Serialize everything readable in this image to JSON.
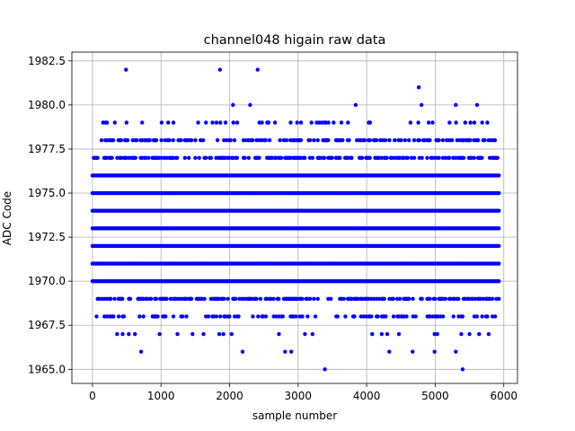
{
  "chart_data": {
    "type": "scatter",
    "title": "channel048 higain raw data",
    "xlabel": "sample number",
    "ylabel": "ADC Code",
    "xlim": [
      -300,
      6200
    ],
    "ylim": [
      1964.2,
      1983.0
    ],
    "xticks": [
      0,
      1000,
      2000,
      3000,
      4000,
      5000,
      6000
    ],
    "yticks": [
      1965.0,
      1967.5,
      1970.0,
      1972.5,
      1975.0,
      1977.5,
      1980.0,
      1982.5
    ],
    "xtick_labels": [
      "0",
      "1000",
      "2000",
      "3000",
      "4000",
      "5000",
      "6000"
    ],
    "ytick_labels": [
      "1965.0",
      "1967.5",
      "1970.0",
      "1972.5",
      "1975.0",
      "1977.5",
      "1980.0",
      "1982.5"
    ],
    "grid": true,
    "color": "#0000ff",
    "x_range": [
      0,
      5940
    ],
    "dense_bands": [
      1970,
      1971,
      1972,
      1973,
      1974,
      1975,
      1976
    ],
    "medium_bands": [
      1969,
      1977,
      1978
    ],
    "sparse_bands": [
      1968,
      1979
    ],
    "points": [
      {
        "x": 490,
        "y": 1982
      },
      {
        "x": 1860,
        "y": 1982
      },
      {
        "x": 2410,
        "y": 1982
      },
      {
        "x": 4760,
        "y": 1981
      },
      {
        "x": 2050,
        "y": 1980
      },
      {
        "x": 2300,
        "y": 1980
      },
      {
        "x": 3840,
        "y": 1980
      },
      {
        "x": 4800,
        "y": 1980
      },
      {
        "x": 5300,
        "y": 1980
      },
      {
        "x": 5610,
        "y": 1980
      },
      {
        "x": 360,
        "y": 1967
      },
      {
        "x": 440,
        "y": 1967
      },
      {
        "x": 530,
        "y": 1967
      },
      {
        "x": 620,
        "y": 1967
      },
      {
        "x": 980,
        "y": 1967
      },
      {
        "x": 1240,
        "y": 1967
      },
      {
        "x": 1460,
        "y": 1967
      },
      {
        "x": 1620,
        "y": 1967
      },
      {
        "x": 1850,
        "y": 1967
      },
      {
        "x": 1910,
        "y": 1967
      },
      {
        "x": 2030,
        "y": 1967
      },
      {
        "x": 2720,
        "y": 1967
      },
      {
        "x": 3100,
        "y": 1967
      },
      {
        "x": 3210,
        "y": 1967
      },
      {
        "x": 4080,
        "y": 1967
      },
      {
        "x": 4220,
        "y": 1967
      },
      {
        "x": 4300,
        "y": 1967
      },
      {
        "x": 4470,
        "y": 1967
      },
      {
        "x": 4990,
        "y": 1967
      },
      {
        "x": 5030,
        "y": 1967
      },
      {
        "x": 5380,
        "y": 1967
      },
      {
        "x": 5500,
        "y": 1967
      },
      {
        "x": 5640,
        "y": 1967
      },
      {
        "x": 5780,
        "y": 1967
      },
      {
        "x": 710,
        "y": 1966
      },
      {
        "x": 2190,
        "y": 1966
      },
      {
        "x": 2810,
        "y": 1966
      },
      {
        "x": 2900,
        "y": 1966
      },
      {
        "x": 4330,
        "y": 1966
      },
      {
        "x": 4670,
        "y": 1966
      },
      {
        "x": 4990,
        "y": 1966
      },
      {
        "x": 5300,
        "y": 1966
      },
      {
        "x": 3390,
        "y": 1965
      },
      {
        "x": 5400,
        "y": 1965
      }
    ]
  }
}
